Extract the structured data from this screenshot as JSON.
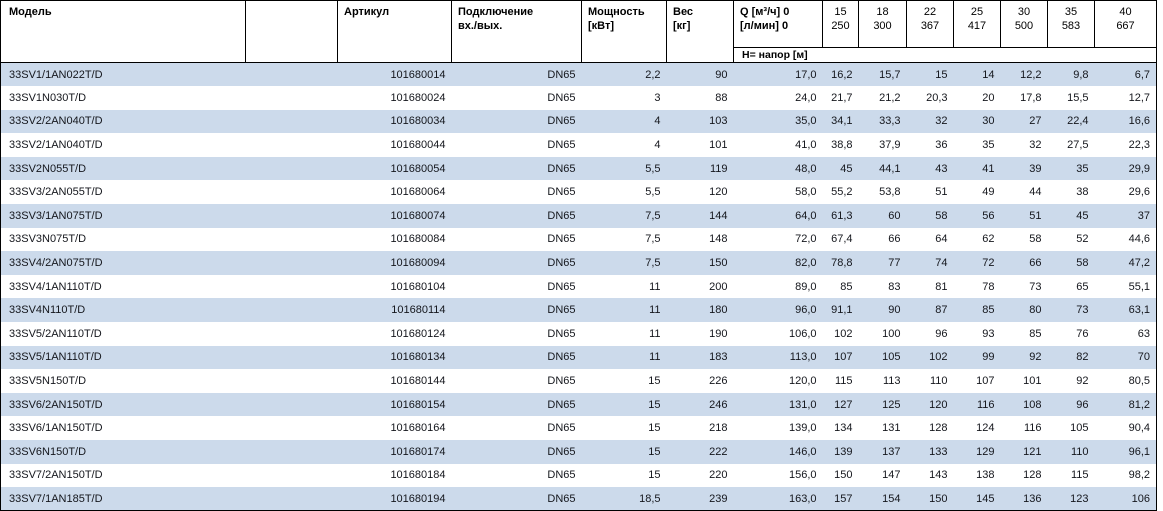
{
  "colors": {
    "row_shade": "#ccdaeb",
    "row_plain": "#ffffff",
    "border": "#000000",
    "text": "#14161c"
  },
  "table": {
    "headers": {
      "model": "Модель",
      "spacer": "",
      "article": "Артикул",
      "connection_line1": "Подключение",
      "connection_line2": "вх./вых.",
      "power_line1": "Мощность",
      "power_line2": "[кВт]",
      "weight_line1": "Вес",
      "weight_line2": "[кг]",
      "q_line1": "Q [м³/ч] 0",
      "q_line2": "[л/мин] 0",
      "head_subheader": "Н= напор [м]"
    },
    "flow_points": [
      {
        "m3h": "15",
        "lmin": "250"
      },
      {
        "m3h": "18",
        "lmin": "300"
      },
      {
        "m3h": "22",
        "lmin": "367"
      },
      {
        "m3h": "25",
        "lmin": "417"
      },
      {
        "m3h": "30",
        "lmin": "500"
      },
      {
        "m3h": "35",
        "lmin": "583"
      },
      {
        "m3h": "40",
        "lmin": "667"
      }
    ],
    "rows": [
      {
        "model": "33SV1/1AN022T/D",
        "article": "101680014",
        "connection": "DN65",
        "power": "2,2",
        "weight": "90",
        "head": [
          "17,0",
          "16,2",
          "15,7",
          "15",
          "14",
          "12,2",
          "9,8",
          "6,7"
        ]
      },
      {
        "model": "33SV1N030T/D",
        "article": "101680024",
        "connection": "DN65",
        "power": "3",
        "weight": "88",
        "head": [
          "24,0",
          "21,7",
          "21,2",
          "20,3",
          "20",
          "17,8",
          "15,5",
          "12,7"
        ]
      },
      {
        "model": "33SV2/2AN040T/D",
        "article": "101680034",
        "connection": "DN65",
        "power": "4",
        "weight": "103",
        "head": [
          "35,0",
          "34,1",
          "33,3",
          "32",
          "30",
          "27",
          "22,4",
          "16,6"
        ]
      },
      {
        "model": "33SV2/1AN040T/D",
        "article": "101680044",
        "connection": "DN65",
        "power": "4",
        "weight": "101",
        "head": [
          "41,0",
          "38,8",
          "37,9",
          "36",
          "35",
          "32",
          "27,5",
          "22,3"
        ]
      },
      {
        "model": "33SV2N055T/D",
        "article": "101680054",
        "connection": "DN65",
        "power": "5,5",
        "weight": "119",
        "head": [
          "48,0",
          "45",
          "44,1",
          "43",
          "41",
          "39",
          "35",
          "29,9"
        ]
      },
      {
        "model": "33SV3/2AN055T/D",
        "article": "101680064",
        "connection": "DN65",
        "power": "5,5",
        "weight": "120",
        "head": [
          "58,0",
          "55,2",
          "53,8",
          "51",
          "49",
          "44",
          "38",
          "29,6"
        ]
      },
      {
        "model": "33SV3/1AN075T/D",
        "article": "101680074",
        "connection": "DN65",
        "power": "7,5",
        "weight": "144",
        "head": [
          "64,0",
          "61,3",
          "60",
          "58",
          "56",
          "51",
          "45",
          "37"
        ]
      },
      {
        "model": "33SV3N075T/D",
        "article": "101680084",
        "connection": "DN65",
        "power": "7,5",
        "weight": "148",
        "head": [
          "72,0",
          "67,4",
          "66",
          "64",
          "62",
          "58",
          "52",
          "44,6"
        ]
      },
      {
        "model": "33SV4/2AN075T/D",
        "article": "101680094",
        "connection": "DN65",
        "power": "7,5",
        "weight": "150",
        "head": [
          "82,0",
          "78,8",
          "77",
          "74",
          "72",
          "66",
          "58",
          "47,2"
        ]
      },
      {
        "model": "33SV4/1AN110T/D",
        "article": "101680104",
        "connection": "DN65",
        "power": "11",
        "weight": "200",
        "head": [
          "89,0",
          "85",
          "83",
          "81",
          "78",
          "73",
          "65",
          "55,1"
        ]
      },
      {
        "model": "33SV4N110T/D",
        "article": "101680114",
        "connection": "DN65",
        "power": "11",
        "weight": "180",
        "head": [
          "96,0",
          "91,1",
          "90",
          "87",
          "85",
          "80",
          "73",
          "63,1"
        ]
      },
      {
        "model": "33SV5/2AN110T/D",
        "article": "101680124",
        "connection": "DN65",
        "power": "11",
        "weight": "190",
        "head": [
          "106,0",
          "102",
          "100",
          "96",
          "93",
          "85",
          "76",
          "63"
        ]
      },
      {
        "model": "33SV5/1AN110T/D",
        "article": "101680134",
        "connection": "DN65",
        "power": "11",
        "weight": "183",
        "head": [
          "113,0",
          "107",
          "105",
          "102",
          "99",
          "92",
          "82",
          "70"
        ]
      },
      {
        "model": "33SV5N150T/D",
        "article": "101680144",
        "connection": "DN65",
        "power": "15",
        "weight": "226",
        "head": [
          "120,0",
          "115",
          "113",
          "110",
          "107",
          "101",
          "92",
          "80,5"
        ]
      },
      {
        "model": "33SV6/2AN150T/D",
        "article": "101680154",
        "connection": "DN65",
        "power": "15",
        "weight": "246",
        "head": [
          "131,0",
          "127",
          "125",
          "120",
          "116",
          "108",
          "96",
          "81,2"
        ]
      },
      {
        "model": "33SV6/1AN150T/D",
        "article": "101680164",
        "connection": "DN65",
        "power": "15",
        "weight": "218",
        "head": [
          "139,0",
          "134",
          "131",
          "128",
          "124",
          "116",
          "105",
          "90,4"
        ]
      },
      {
        "model": "33SV6N150T/D",
        "article": "101680174",
        "connection": "DN65",
        "power": "15",
        "weight": "222",
        "head": [
          "146,0",
          "139",
          "137",
          "133",
          "129",
          "121",
          "110",
          "96,1"
        ]
      },
      {
        "model": "33SV7/2AN150T/D",
        "article": "101680184",
        "connection": "DN65",
        "power": "15",
        "weight": "220",
        "head": [
          "156,0",
          "150",
          "147",
          "143",
          "138",
          "128",
          "115",
          "98,2"
        ]
      },
      {
        "model": "33SV7/1AN185T/D",
        "article": "101680194",
        "connection": "DN65",
        "power": "18,5",
        "weight": "239",
        "head": [
          "163,0",
          "157",
          "154",
          "150",
          "145",
          "136",
          "123",
          "106"
        ]
      }
    ]
  }
}
